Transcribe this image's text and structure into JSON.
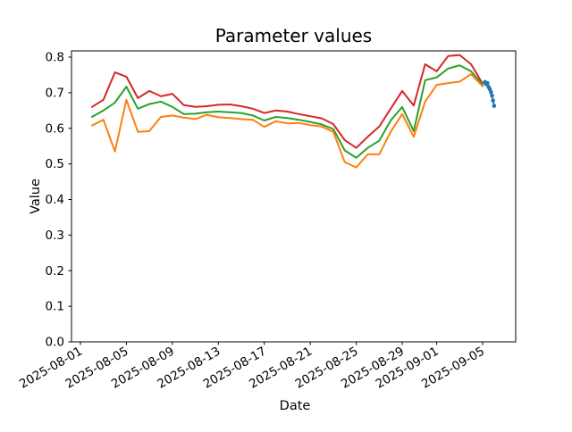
{
  "figure": {
    "title": "Parameter values",
    "xlabel": "Date",
    "ylabel": "Value"
  },
  "chart_data": {
    "type": "line",
    "title": "Parameter values",
    "xlabel": "Date",
    "ylabel": "Value",
    "grid": false,
    "legend": "none",
    "x_epoch": "2025-08-01",
    "ylim": [
      0.0,
      0.8175
    ],
    "xlim_days": [
      -0.78,
      37.87
    ],
    "y_ticks": [
      0.0,
      0.1,
      0.2,
      0.3,
      0.4,
      0.5,
      0.6,
      0.7,
      0.8
    ],
    "x_ticks": [
      "2025-08-01",
      "2025-08-05",
      "2025-08-09",
      "2025-08-13",
      "2025-08-17",
      "2025-08-21",
      "2025-08-25",
      "2025-08-29",
      "2025-09-01",
      "2025-09-05"
    ],
    "dates": [
      "2025-08-02",
      "2025-08-03",
      "2025-08-04",
      "2025-08-05",
      "2025-08-06",
      "2025-08-07",
      "2025-08-08",
      "2025-08-09",
      "2025-08-10",
      "2025-08-11",
      "2025-08-12",
      "2025-08-13",
      "2025-08-14",
      "2025-08-15",
      "2025-08-16",
      "2025-08-17",
      "2025-08-18",
      "2025-08-19",
      "2025-08-20",
      "2025-08-21",
      "2025-08-22",
      "2025-08-23",
      "2025-08-24",
      "2025-08-25",
      "2025-08-26",
      "2025-08-27",
      "2025-08-28",
      "2025-08-29",
      "2025-08-30",
      "2025-08-31",
      "2025-09-01",
      "2025-09-02",
      "2025-09-03",
      "2025-09-04",
      "2025-09-05"
    ],
    "series": [
      {
        "name": "series-red",
        "color": "#d62728",
        "values": [
          0.66,
          0.68,
          0.757,
          0.745,
          0.685,
          0.705,
          0.69,
          0.697,
          0.665,
          0.66,
          0.662,
          0.666,
          0.667,
          0.662,
          0.655,
          0.643,
          0.65,
          0.647,
          0.64,
          0.634,
          0.628,
          0.612,
          0.567,
          0.545,
          0.576,
          0.605,
          0.655,
          0.705,
          0.664,
          0.78,
          0.76,
          0.803,
          0.806,
          0.78,
          0.725
        ]
      },
      {
        "name": "series-green",
        "color": "#2ca02c",
        "values": [
          0.632,
          0.65,
          0.672,
          0.717,
          0.655,
          0.668,
          0.675,
          0.66,
          0.64,
          0.641,
          0.645,
          0.647,
          0.645,
          0.643,
          0.636,
          0.622,
          0.632,
          0.629,
          0.624,
          0.618,
          0.611,
          0.598,
          0.538,
          0.517,
          0.545,
          0.565,
          0.622,
          0.66,
          0.592,
          0.735,
          0.743,
          0.768,
          0.777,
          0.76,
          0.722
        ]
      },
      {
        "name": "series-orange",
        "color": "#ff7f0e",
        "values": [
          0.608,
          0.624,
          0.535,
          0.68,
          0.59,
          0.592,
          0.632,
          0.636,
          0.63,
          0.626,
          0.638,
          0.631,
          0.629,
          0.626,
          0.624,
          0.604,
          0.62,
          0.614,
          0.615,
          0.609,
          0.605,
          0.59,
          0.505,
          0.49,
          0.527,
          0.527,
          0.59,
          0.64,
          0.576,
          0.675,
          0.722,
          0.727,
          0.731,
          0.752,
          0.718
        ]
      }
    ],
    "extra_series": {
      "name": "series-blue",
      "color": "#1f77b4",
      "marker": true,
      "x_days": [
        35.2,
        35.3,
        35.42,
        35.52,
        35.62,
        35.72,
        35.82,
        35.9,
        36.0
      ],
      "values": [
        0.73,
        0.724,
        0.727,
        0.716,
        0.71,
        0.702,
        0.692,
        0.678,
        0.663
      ]
    }
  }
}
